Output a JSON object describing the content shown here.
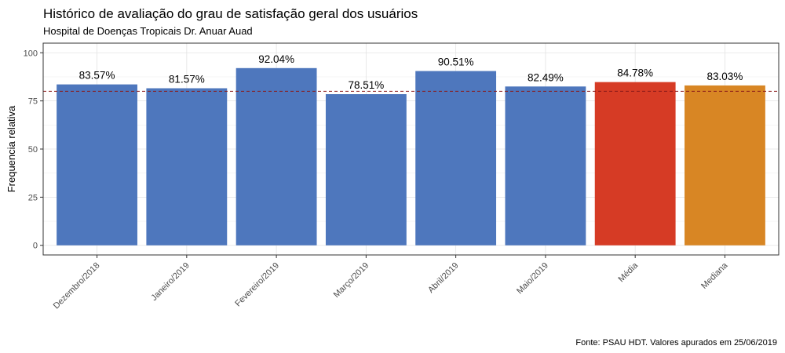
{
  "chart_data": {
    "type": "bar",
    "title": "Histórico de avaliação do grau de satisfação geral dos usuários",
    "subtitle": "Hospital de Doenças Tropicais Dr. Anuar Auad",
    "caption": "Fonte: PSAU HDT. Valores apurados em 25/06/2019",
    "xlabel": "",
    "ylabel": "Frequencia relativa",
    "ylim": [
      -5,
      105
    ],
    "yticks": [
      0,
      25,
      50,
      75,
      100
    ],
    "reference_line": 80,
    "reference_line_color": "#8b1a1a",
    "grid": true,
    "categories": [
      "Dezembro/2018",
      "Janeiro/2019",
      "Fevereiro/2019",
      "Março/2019",
      "Abril/2019",
      "Maio/2019",
      "Média",
      "Mediana"
    ],
    "values": [
      83.57,
      81.57,
      92.04,
      78.51,
      90.51,
      82.49,
      84.78,
      83.03
    ],
    "data_labels": [
      "83.57%",
      "81.57%",
      "92.04%",
      "78.51%",
      "90.51%",
      "82.49%",
      "84.78%",
      "83.03%"
    ],
    "colors": [
      "#4e77bd",
      "#4e77bd",
      "#4e77bd",
      "#4e77bd",
      "#4e77bd",
      "#4e77bd",
      "#d63b25",
      "#d88624"
    ]
  }
}
